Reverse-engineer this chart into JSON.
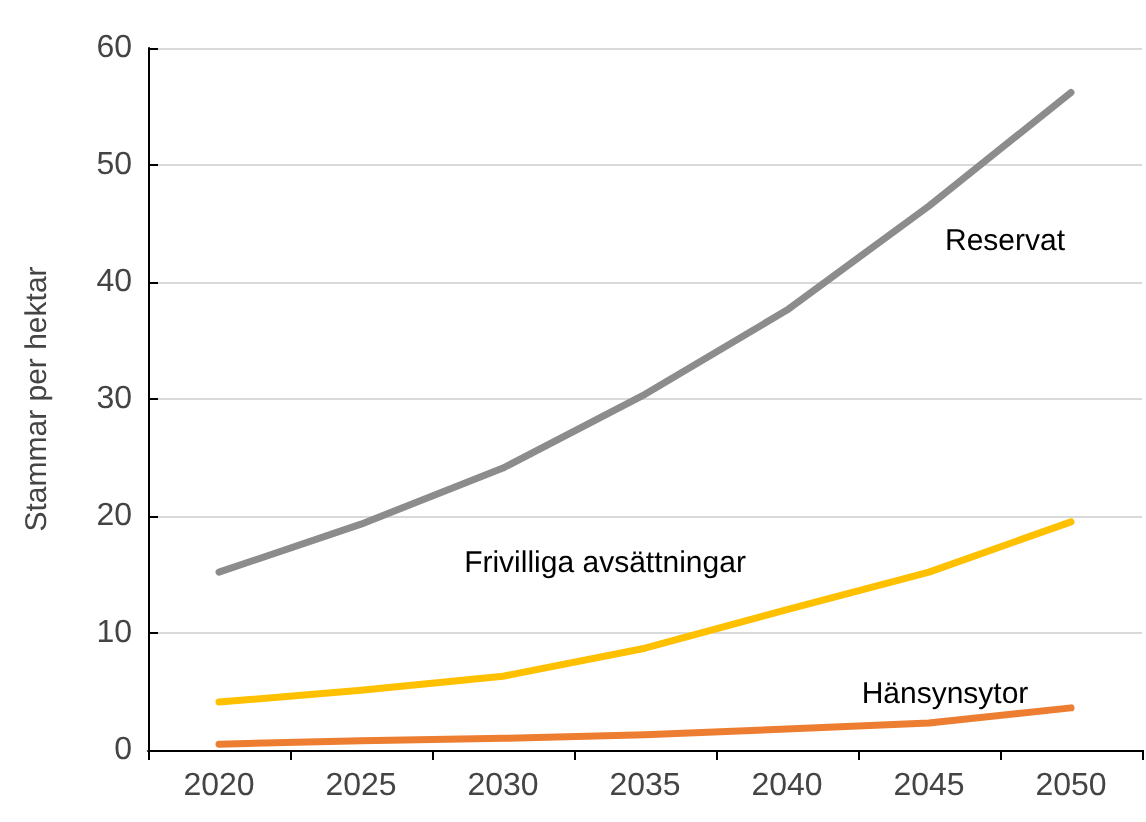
{
  "chart_data": {
    "type": "line",
    "ylabel": "Stammar per hektar",
    "categories": [
      "2020",
      "2025",
      "2030",
      "2035",
      "2040",
      "2045",
      "2050"
    ],
    "series": [
      {
        "name": "Reservat",
        "color": "#8c8c8c",
        "values": [
          15.2,
          19.3,
          24.1,
          30.4,
          37.6,
          46.5,
          56.2
        ]
      },
      {
        "name": "Frivilliga avsättningar",
        "color": "#ffc000",
        "values": [
          4.1,
          5.1,
          6.3,
          8.7,
          12.0,
          15.2,
          19.5
        ]
      },
      {
        "name": "Hänsynsytor",
        "color": "#ed7d31",
        "values": [
          0.5,
          0.8,
          1.0,
          1.3,
          1.8,
          2.3,
          3.6
        ]
      }
    ],
    "ylim": [
      0,
      60
    ],
    "yticks": [
      0,
      10,
      20,
      30,
      40,
      50,
      60
    ],
    "grid": "y",
    "legend": false,
    "marker": "none",
    "line_style": "solid"
  }
}
